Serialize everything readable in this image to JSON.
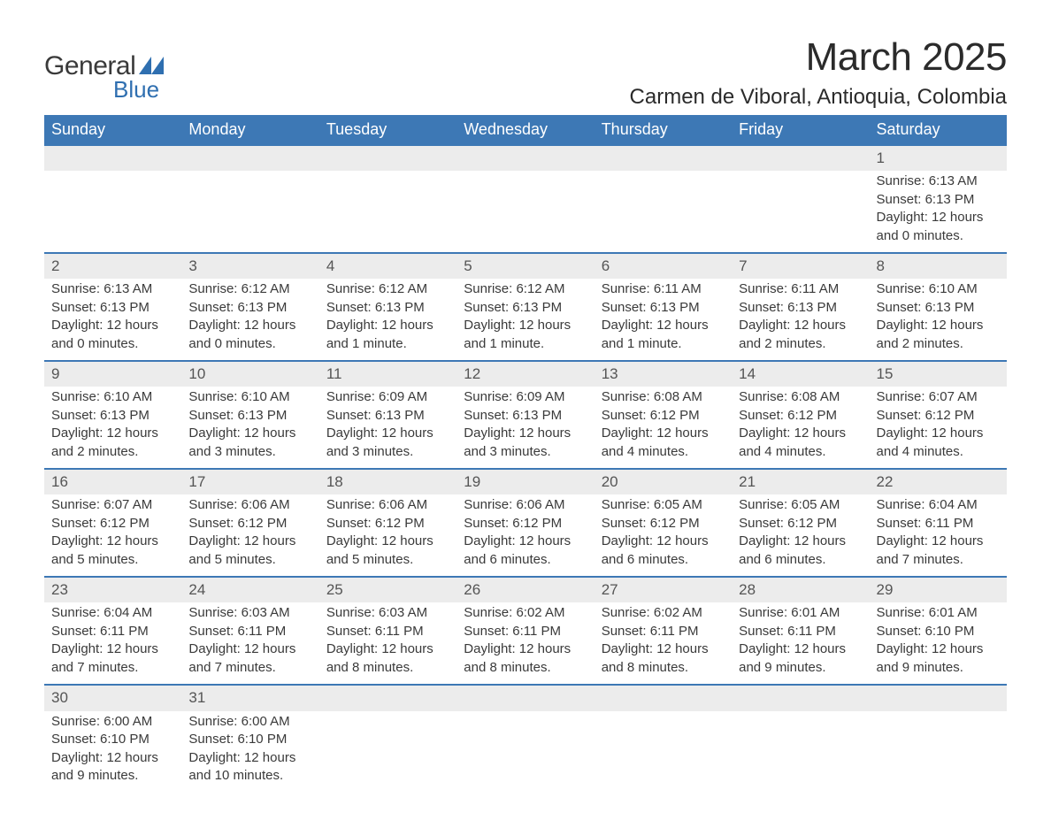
{
  "brand": {
    "name_part1": "General",
    "name_part2": "Blue",
    "text_color": "#3a3a3a",
    "accent_color": "#2f6fb0"
  },
  "title": {
    "month_year": "March 2025",
    "location": "Carmen de Viboral, Antioquia, Colombia",
    "title_fontsize": 44,
    "location_fontsize": 24
  },
  "colors": {
    "header_bg": "#3d78b5",
    "header_text": "#ffffff",
    "daynum_bg": "#ececec",
    "row_border": "#3d78b5",
    "body_text": "#3a3a3a",
    "background": "#ffffff"
  },
  "calendar": {
    "type": "table",
    "columns": [
      "Sunday",
      "Monday",
      "Tuesday",
      "Wednesday",
      "Thursday",
      "Friday",
      "Saturday"
    ],
    "weeks": [
      [
        null,
        null,
        null,
        null,
        null,
        null,
        {
          "day": "1",
          "sunrise": "Sunrise: 6:13 AM",
          "sunset": "Sunset: 6:13 PM",
          "daylight1": "Daylight: 12 hours",
          "daylight2": "and 0 minutes."
        }
      ],
      [
        {
          "day": "2",
          "sunrise": "Sunrise: 6:13 AM",
          "sunset": "Sunset: 6:13 PM",
          "daylight1": "Daylight: 12 hours",
          "daylight2": "and 0 minutes."
        },
        {
          "day": "3",
          "sunrise": "Sunrise: 6:12 AM",
          "sunset": "Sunset: 6:13 PM",
          "daylight1": "Daylight: 12 hours",
          "daylight2": "and 0 minutes."
        },
        {
          "day": "4",
          "sunrise": "Sunrise: 6:12 AM",
          "sunset": "Sunset: 6:13 PM",
          "daylight1": "Daylight: 12 hours",
          "daylight2": "and 1 minute."
        },
        {
          "day": "5",
          "sunrise": "Sunrise: 6:12 AM",
          "sunset": "Sunset: 6:13 PM",
          "daylight1": "Daylight: 12 hours",
          "daylight2": "and 1 minute."
        },
        {
          "day": "6",
          "sunrise": "Sunrise: 6:11 AM",
          "sunset": "Sunset: 6:13 PM",
          "daylight1": "Daylight: 12 hours",
          "daylight2": "and 1 minute."
        },
        {
          "day": "7",
          "sunrise": "Sunrise: 6:11 AM",
          "sunset": "Sunset: 6:13 PM",
          "daylight1": "Daylight: 12 hours",
          "daylight2": "and 2 minutes."
        },
        {
          "day": "8",
          "sunrise": "Sunrise: 6:10 AM",
          "sunset": "Sunset: 6:13 PM",
          "daylight1": "Daylight: 12 hours",
          "daylight2": "and 2 minutes."
        }
      ],
      [
        {
          "day": "9",
          "sunrise": "Sunrise: 6:10 AM",
          "sunset": "Sunset: 6:13 PM",
          "daylight1": "Daylight: 12 hours",
          "daylight2": "and 2 minutes."
        },
        {
          "day": "10",
          "sunrise": "Sunrise: 6:10 AM",
          "sunset": "Sunset: 6:13 PM",
          "daylight1": "Daylight: 12 hours",
          "daylight2": "and 3 minutes."
        },
        {
          "day": "11",
          "sunrise": "Sunrise: 6:09 AM",
          "sunset": "Sunset: 6:13 PM",
          "daylight1": "Daylight: 12 hours",
          "daylight2": "and 3 minutes."
        },
        {
          "day": "12",
          "sunrise": "Sunrise: 6:09 AM",
          "sunset": "Sunset: 6:13 PM",
          "daylight1": "Daylight: 12 hours",
          "daylight2": "and 3 minutes."
        },
        {
          "day": "13",
          "sunrise": "Sunrise: 6:08 AM",
          "sunset": "Sunset: 6:12 PM",
          "daylight1": "Daylight: 12 hours",
          "daylight2": "and 4 minutes."
        },
        {
          "day": "14",
          "sunrise": "Sunrise: 6:08 AM",
          "sunset": "Sunset: 6:12 PM",
          "daylight1": "Daylight: 12 hours",
          "daylight2": "and 4 minutes."
        },
        {
          "day": "15",
          "sunrise": "Sunrise: 6:07 AM",
          "sunset": "Sunset: 6:12 PM",
          "daylight1": "Daylight: 12 hours",
          "daylight2": "and 4 minutes."
        }
      ],
      [
        {
          "day": "16",
          "sunrise": "Sunrise: 6:07 AM",
          "sunset": "Sunset: 6:12 PM",
          "daylight1": "Daylight: 12 hours",
          "daylight2": "and 5 minutes."
        },
        {
          "day": "17",
          "sunrise": "Sunrise: 6:06 AM",
          "sunset": "Sunset: 6:12 PM",
          "daylight1": "Daylight: 12 hours",
          "daylight2": "and 5 minutes."
        },
        {
          "day": "18",
          "sunrise": "Sunrise: 6:06 AM",
          "sunset": "Sunset: 6:12 PM",
          "daylight1": "Daylight: 12 hours",
          "daylight2": "and 5 minutes."
        },
        {
          "day": "19",
          "sunrise": "Sunrise: 6:06 AM",
          "sunset": "Sunset: 6:12 PM",
          "daylight1": "Daylight: 12 hours",
          "daylight2": "and 6 minutes."
        },
        {
          "day": "20",
          "sunrise": "Sunrise: 6:05 AM",
          "sunset": "Sunset: 6:12 PM",
          "daylight1": "Daylight: 12 hours",
          "daylight2": "and 6 minutes."
        },
        {
          "day": "21",
          "sunrise": "Sunrise: 6:05 AM",
          "sunset": "Sunset: 6:12 PM",
          "daylight1": "Daylight: 12 hours",
          "daylight2": "and 6 minutes."
        },
        {
          "day": "22",
          "sunrise": "Sunrise: 6:04 AM",
          "sunset": "Sunset: 6:11 PM",
          "daylight1": "Daylight: 12 hours",
          "daylight2": "and 7 minutes."
        }
      ],
      [
        {
          "day": "23",
          "sunrise": "Sunrise: 6:04 AM",
          "sunset": "Sunset: 6:11 PM",
          "daylight1": "Daylight: 12 hours",
          "daylight2": "and 7 minutes."
        },
        {
          "day": "24",
          "sunrise": "Sunrise: 6:03 AM",
          "sunset": "Sunset: 6:11 PM",
          "daylight1": "Daylight: 12 hours",
          "daylight2": "and 7 minutes."
        },
        {
          "day": "25",
          "sunrise": "Sunrise: 6:03 AM",
          "sunset": "Sunset: 6:11 PM",
          "daylight1": "Daylight: 12 hours",
          "daylight2": "and 8 minutes."
        },
        {
          "day": "26",
          "sunrise": "Sunrise: 6:02 AM",
          "sunset": "Sunset: 6:11 PM",
          "daylight1": "Daylight: 12 hours",
          "daylight2": "and 8 minutes."
        },
        {
          "day": "27",
          "sunrise": "Sunrise: 6:02 AM",
          "sunset": "Sunset: 6:11 PM",
          "daylight1": "Daylight: 12 hours",
          "daylight2": "and 8 minutes."
        },
        {
          "day": "28",
          "sunrise": "Sunrise: 6:01 AM",
          "sunset": "Sunset: 6:11 PM",
          "daylight1": "Daylight: 12 hours",
          "daylight2": "and 9 minutes."
        },
        {
          "day": "29",
          "sunrise": "Sunrise: 6:01 AM",
          "sunset": "Sunset: 6:10 PM",
          "daylight1": "Daylight: 12 hours",
          "daylight2": "and 9 minutes."
        }
      ],
      [
        {
          "day": "30",
          "sunrise": "Sunrise: 6:00 AM",
          "sunset": "Sunset: 6:10 PM",
          "daylight1": "Daylight: 12 hours",
          "daylight2": "and 9 minutes."
        },
        {
          "day": "31",
          "sunrise": "Sunrise: 6:00 AM",
          "sunset": "Sunset: 6:10 PM",
          "daylight1": "Daylight: 12 hours",
          "daylight2": "and 10 minutes."
        },
        null,
        null,
        null,
        null,
        null
      ]
    ]
  }
}
